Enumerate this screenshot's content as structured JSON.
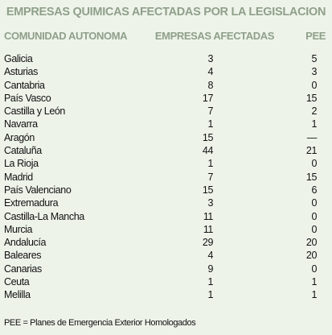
{
  "title": "EMPRESAS QUIMICAS AFECTADAS POR LA LEGISLACION",
  "headers": {
    "region": "COMUNIDAD AUTONOMA",
    "count": "EMPRESAS AFECTADAS",
    "pee": "PEE"
  },
  "rows": [
    {
      "region": "Galicia",
      "count": "3",
      "pee": "5"
    },
    {
      "region": "Asturias",
      "count": "4",
      "pee": "3"
    },
    {
      "region": "Cantabria",
      "count": "8",
      "pee": "0"
    },
    {
      "region": "País Vasco",
      "count": "17",
      "pee": "15"
    },
    {
      "region": "Castilla y León",
      "count": "7",
      "pee": "2"
    },
    {
      "region": "Navarra",
      "count": "1",
      "pee": "1"
    },
    {
      "region": "Aragón",
      "count": "15",
      "pee": "—"
    },
    {
      "region": "Cataluña",
      "count": "44",
      "pee": "21"
    },
    {
      "region": "La Rioja",
      "count": "1",
      "pee": "0"
    },
    {
      "region": "Madrid",
      "count": "7",
      "pee": "15"
    },
    {
      "region": "País Valenciano",
      "count": "15",
      "pee": "6"
    },
    {
      "region": "Extremadura",
      "count": "3",
      "pee": "0"
    },
    {
      "region": "Castilla-La Mancha",
      "count": "11",
      "pee": "0"
    },
    {
      "region": "Murcia",
      "count": "11",
      "pee": "0"
    },
    {
      "region": "Andalucía",
      "count": "29",
      "pee": "20"
    },
    {
      "region": "Baleares",
      "count": "4",
      "pee": "20"
    },
    {
      "region": "Canarias",
      "count": "9",
      "pee": "0"
    },
    {
      "region": "Ceuta",
      "count": "1",
      "pee": "1"
    },
    {
      "region": "Melilla",
      "count": "1",
      "pee": "1"
    }
  ],
  "footnote": "PEE = Planes de Emergencia Exterior Homologados",
  "colors": {
    "background": "#eef3ea",
    "header": "#8fa08a",
    "text": "#111111"
  }
}
